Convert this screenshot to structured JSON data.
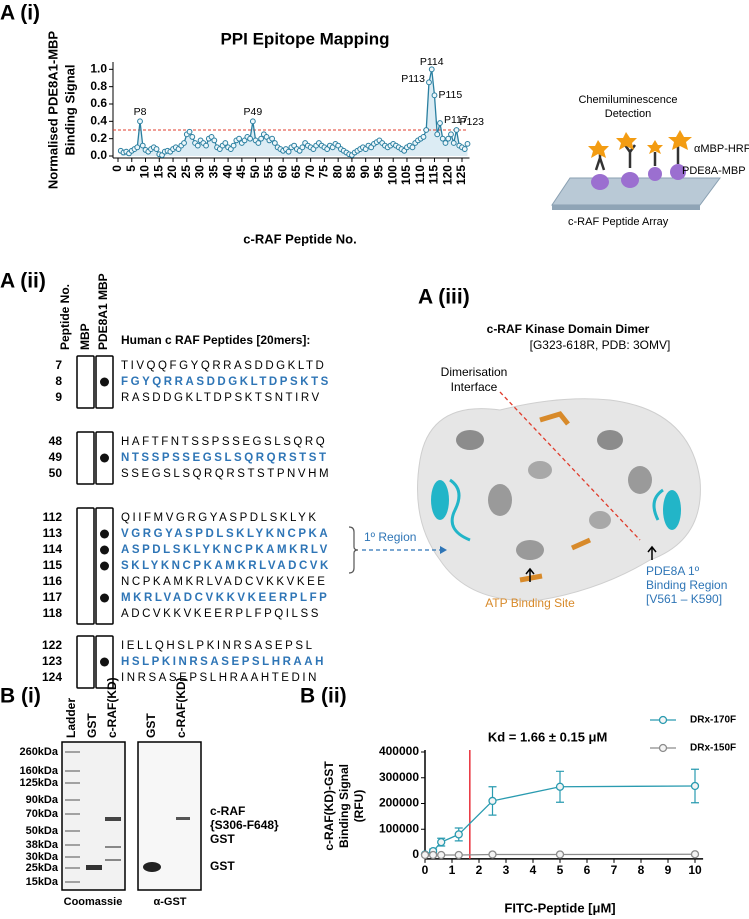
{
  "chart_data": [
    {
      "type": "line",
      "panel": "A (i)",
      "title": "PPI Epitope Mapping",
      "x_label": "c-RAF Peptide No.",
      "y_label": [
        "Normalised PDE8A1-MBP",
        "Binding Signal"
      ],
      "x": [
        1,
        2,
        3,
        4,
        5,
        6,
        7,
        8,
        9,
        10,
        11,
        12,
        13,
        14,
        15,
        16,
        17,
        18,
        19,
        20,
        21,
        22,
        23,
        24,
        25,
        26,
        27,
        28,
        29,
        30,
        31,
        32,
        33,
        34,
        35,
        36,
        37,
        38,
        39,
        40,
        41,
        42,
        43,
        44,
        45,
        46,
        47,
        48,
        49,
        50,
        51,
        52,
        53,
        54,
        55,
        56,
        57,
        58,
        59,
        60,
        61,
        62,
        63,
        64,
        65,
        66,
        67,
        68,
        69,
        70,
        71,
        72,
        73,
        74,
        75,
        76,
        77,
        78,
        79,
        80,
        81,
        82,
        83,
        84,
        85,
        86,
        87,
        88,
        89,
        90,
        91,
        92,
        93,
        94,
        95,
        96,
        97,
        98,
        99,
        100,
        101,
        102,
        103,
        104,
        105,
        106,
        107,
        108,
        109,
        110,
        111,
        112,
        113,
        114,
        115,
        116,
        117,
        118,
        119,
        120,
        121,
        122,
        123,
        124,
        125,
        126,
        127
      ],
      "values": [
        0.06,
        0.04,
        0.05,
        0.03,
        0.06,
        0.08,
        0.1,
        0.4,
        0.12,
        0.07,
        0.05,
        0.08,
        0.1,
        0.08,
        0.02,
        0.01,
        0.05,
        0.06,
        0.05,
        0.08,
        0.1,
        0.08,
        0.12,
        0.15,
        0.25,
        0.28,
        0.22,
        0.15,
        0.12,
        0.18,
        0.15,
        0.12,
        0.2,
        0.22,
        0.18,
        0.1,
        0.08,
        0.12,
        0.15,
        0.1,
        0.08,
        0.12,
        0.18,
        0.2,
        0.15,
        0.18,
        0.22,
        0.2,
        0.4,
        0.18,
        0.15,
        0.2,
        0.25,
        0.22,
        0.18,
        0.2,
        0.15,
        0.1,
        0.08,
        0.06,
        0.08,
        0.05,
        0.1,
        0.12,
        0.08,
        0.06,
        0.1,
        0.15,
        0.12,
        0.1,
        0.08,
        0.12,
        0.15,
        0.12,
        0.1,
        0.08,
        0.12,
        0.1,
        0.14,
        0.12,
        0.08,
        0.06,
        0.04,
        0.02,
        0.01,
        0.04,
        0.06,
        0.08,
        0.1,
        0.08,
        0.12,
        0.1,
        0.14,
        0.16,
        0.18,
        0.15,
        0.12,
        0.1,
        0.12,
        0.14,
        0.12,
        0.1,
        0.08,
        0.06,
        0.1,
        0.12,
        0.1,
        0.15,
        0.18,
        0.2,
        0.22,
        0.3,
        0.85,
        1.0,
        0.7,
        0.25,
        0.38,
        0.2,
        0.15,
        0.2,
        0.25,
        0.15,
        0.3,
        0.12,
        0.1,
        0.08,
        0.14
      ],
      "color": "#2a7fa0",
      "threshold": 0.3,
      "threshold_color": "#e03c2c",
      "annotations": [
        {
          "label": "P8",
          "x": 8
        },
        {
          "label": "P49",
          "x": 49
        },
        {
          "label": "P113",
          "x": 113
        },
        {
          "label": "P114",
          "x": 114
        },
        {
          "label": "P115",
          "x": 115
        },
        {
          "label": "P117",
          "x": 117
        },
        {
          "label": "P123",
          "x": 123
        }
      ],
      "xlim": [
        0,
        127
      ],
      "xticks": [
        0,
        5,
        10,
        15,
        20,
        25,
        30,
        35,
        40,
        45,
        50,
        55,
        60,
        65,
        70,
        75,
        80,
        85,
        90,
        95,
        100,
        105,
        110,
        115,
        120,
        125
      ],
      "ylim": [
        0,
        1.05
      ],
      "yticks": [
        {
          "value": 0,
          "label": "0.0"
        },
        0.2,
        0.4,
        0.6,
        0.8,
        {
          "value": 1,
          "label": "1.0"
        }
      ]
    },
    {
      "type": "line",
      "panel": "B (ii)",
      "x_label": "FITC-Peptide [μM]",
      "y_label": [
        "c-RAF(KD)-GST",
        "Binding Signal",
        "(RFU)"
      ],
      "annotation": "Kd = 1.66 ± 0.15 μM",
      "kd_line": 1.66,
      "kd_color": "#e8303a",
      "x": [
        0,
        0.3,
        0.6,
        1.25,
        2.5,
        5,
        10
      ],
      "series": [
        {
          "name": "DRx-170F",
          "color": "#2a9bb0",
          "values": [
            2000,
            15000,
            50000,
            80000,
            210000,
            265000,
            268000
          ],
          "errors": [
            3000,
            8000,
            15000,
            25000,
            55000,
            60000,
            65000
          ]
        },
        {
          "name": "DRx-150F",
          "color": "#8c8c8c",
          "values": [
            0,
            0,
            0,
            0,
            2000,
            2000,
            3000
          ]
        }
      ],
      "xlim": [
        0,
        10.3
      ],
      "xticks": [
        0,
        1,
        2,
        3,
        4,
        5,
        6,
        7,
        8,
        9,
        10
      ],
      "ylim": [
        -15000,
        400000
      ],
      "yticks": [
        0,
        100000,
        200000,
        300000,
        400000
      ]
    }
  ],
  "schematic": {
    "detection": [
      "Chemiluminescence",
      "Detection"
    ],
    "antibody": "αMBP-HRP",
    "protein": "PDE8A-MBP",
    "array": "c-RAF Peptide Array"
  },
  "peptide_table": {
    "panel": "A (ii)",
    "headers": {
      "number": "Peptide No.",
      "mbp": "MBP",
      "pde": "PDE8A1 MBP",
      "sequence": "Human c RAF Peptides [20mers]:"
    },
    "region_label": "1º Region",
    "groups": [
      {
        "rows": [
          {
            "no": "7",
            "seq": "TIVQQFGYQRRASDDGKLTD",
            "highlight": false
          },
          {
            "no": "8",
            "seq": "FGYQRRASDDGKLTDPSKTS",
            "highlight": true
          },
          {
            "no": "9",
            "seq": "RASDDGKLTDPSKTSNTIRV",
            "highlight": false
          }
        ]
      },
      {
        "rows": [
          {
            "no": "48",
            "seq": "HAFTFNTSSPSSEGSLSQRQ",
            "highlight": false
          },
          {
            "no": "49",
            "seq": "NTSSPSSEGSLSQRQRSTST",
            "highlight": true
          },
          {
            "no": "50",
            "seq": "SSEGSLSQRQRSTSTPNVHM",
            "highlight": false
          }
        ]
      },
      {
        "rows": [
          {
            "no": "112",
            "seq": "QIIFMVGRGYASPDLSKLYK",
            "highlight": false
          },
          {
            "no": "113",
            "seq": "VGRGYASPDLSKLYKNCPKA",
            "highlight": true
          },
          {
            "no": "114",
            "seq": "ASPDLSKLYKNCPKAMKRLV",
            "highlight": true
          },
          {
            "no": "115",
            "seq": "SKLYKNCPKAMKRLVADCVK",
            "highlight": true
          },
          {
            "no": "116",
            "seq": "NCPKAMKRLVADCVKKVKEE",
            "highlight": false
          },
          {
            "no": "117",
            "seq": "MKRLVADCVKKVKEERPLFP",
            "highlight": true
          },
          {
            "no": "118",
            "seq": "ADCVKKVKEERPLFPQILSS",
            "highlight": false
          }
        ]
      },
      {
        "rows": [
          {
            "no": "122",
            "seq": "IELLQHSLPKINRSASEPSL",
            "highlight": false
          },
          {
            "no": "123",
            "seq": "HSLPKINRSASEPSLHRAAH",
            "highlight": true
          },
          {
            "no": "124",
            "seq": "INRSASEPSLHRAAHTEDIN",
            "highlight": false
          }
        ]
      }
    ]
  },
  "structure": {
    "panel": "A (iii)",
    "title": "c-RAF Kinase Domain Dimer",
    "subtitle": "[G323-618R, PDB: 3OMV]",
    "interface": [
      "Dimerisation",
      "Interface"
    ],
    "atp": "ATP Binding Site",
    "binding": [
      "PDE8A 1º",
      "Binding Region",
      "[V561 – K590]"
    ]
  },
  "gel": {
    "panel": "B (i)",
    "lanes": [
      "Ladder",
      "GST",
      "c-RAF(KD)",
      "GST",
      "c-RAF(KD)"
    ],
    "markers": [
      "260kDa",
      "160kDa",
      "125kDa",
      "90kDa",
      "70kDa",
      "50kDa",
      "38kDa",
      "30kDa",
      "25kDa",
      "15kDa"
    ],
    "craf_label": [
      "c-RAF",
      "{S306-F648}",
      "GST"
    ],
    "gst_label": "GST",
    "stains": [
      "Coomassie",
      "α-GST"
    ]
  }
}
